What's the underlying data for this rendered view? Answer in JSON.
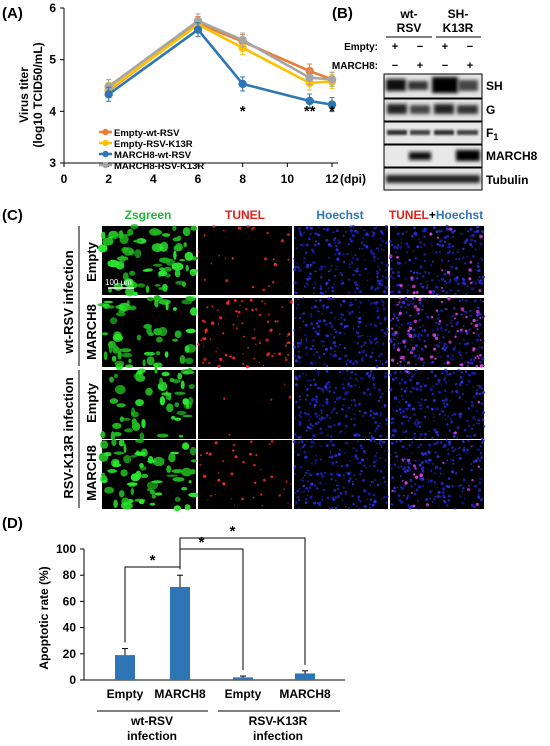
{
  "panels": {
    "a": "(A)",
    "b": "(B)",
    "c": "(C)",
    "d": "(D)"
  },
  "panelA": {
    "ylabel_line1": "Virus titer",
    "ylabel_line2": "(log10 TCID50/mL)",
    "yticks": [
      "3",
      "4",
      "5",
      "6"
    ],
    "xticks": [
      "0",
      "2",
      "4",
      "6",
      "8",
      "10",
      "12"
    ],
    "xunit": "(dpi)",
    "sig_marks": [
      {
        "x": 8,
        "label": "*"
      },
      {
        "x": 11,
        "label": "**"
      },
      {
        "x": 12,
        "label": "*"
      }
    ],
    "colors": {
      "Empty-wt-RSV": "#ED7D31",
      "Empty-RSV-K13R": "#FFC000",
      "MARCH8-wt-RSV": "#2E75B6",
      "MARCH8-RSV-K13R": "#A5A5A5"
    }
  },
  "panelB": {
    "col1": [
      "wt-",
      "RSV"
    ],
    "col2": [
      "SH-",
      "K13R"
    ],
    "row_empty": "Empty:",
    "row_march": "MARCH8:",
    "empty_signs": [
      "+",
      "−",
      "+",
      "−"
    ],
    "march_signs": [
      "−",
      "+",
      "−",
      "+"
    ],
    "bands": [
      "SH",
      "G",
      "F1",
      "MARCH8",
      "Tubulin"
    ],
    "f1_main": "F",
    "f1_sub": "1"
  },
  "panelC": {
    "cols": [
      {
        "text": "Zsgreen",
        "color": "#22B83A"
      },
      {
        "text": "TUNEL",
        "color": "#E0201B"
      },
      {
        "text": "Hoechst",
        "color": "#2E75B6"
      }
    ],
    "merge_a": "TUNEL",
    "merge_plus": "+",
    "merge_b": "Hoechst",
    "group1": "wt-RSV infection",
    "group2": "RSV-K13R infection",
    "rows": [
      "Empty",
      "MARCH8",
      "Empty",
      "MARCH8"
    ],
    "scalebar": "100 μm"
  },
  "chart_data": [
    {
      "type": "line",
      "title": "",
      "xlabel": "(dpi)",
      "ylabel": "Virus titer (log10 TCID50/mL)",
      "xlim": [
        0,
        12
      ],
      "ylim": [
        3,
        6
      ],
      "x": [
        2,
        6,
        8,
        11,
        12
      ],
      "series": [
        {
          "name": "Empty-wt-RSV",
          "values": [
            4.4,
            5.7,
            5.35,
            4.78,
            4.62
          ]
        },
        {
          "name": "Empty-RSV-K13R",
          "values": [
            4.42,
            5.68,
            5.23,
            4.55,
            4.58
          ]
        },
        {
          "name": "MARCH8-wt-RSV",
          "values": [
            4.33,
            5.58,
            4.53,
            4.2,
            4.13
          ]
        },
        {
          "name": "MARCH8-RSV-K13R",
          "values": [
            4.48,
            5.75,
            5.38,
            4.65,
            4.62
          ]
        }
      ],
      "legend": "inside-bottom-left"
    },
    {
      "type": "bar",
      "title": "",
      "xlabel": "",
      "ylabel": "Apoptotic rate (%)",
      "ylim": [
        0,
        100
      ],
      "yticks": [
        0,
        20,
        40,
        60,
        80,
        100
      ],
      "categories": [
        "Empty",
        "MARCH8",
        "Empty",
        "MARCH8"
      ],
      "values": [
        19,
        71,
        2,
        5
      ],
      "errors": [
        5,
        9,
        1,
        2
      ],
      "groups": [
        {
          "label": "wt-RSV infection",
          "line1": "wt-RSV",
          "line2": "infection"
        },
        {
          "label": "RSV-K13R infection",
          "line1": "RSV-K13R",
          "line2": "infection"
        }
      ],
      "significance": [
        {
          "from": 0,
          "to": 1,
          "label": "*"
        },
        {
          "from": 1,
          "to": 2,
          "label": "*"
        },
        {
          "from": 1,
          "to": 3,
          "label": "*"
        }
      ],
      "color": "#2E75B6"
    }
  ]
}
